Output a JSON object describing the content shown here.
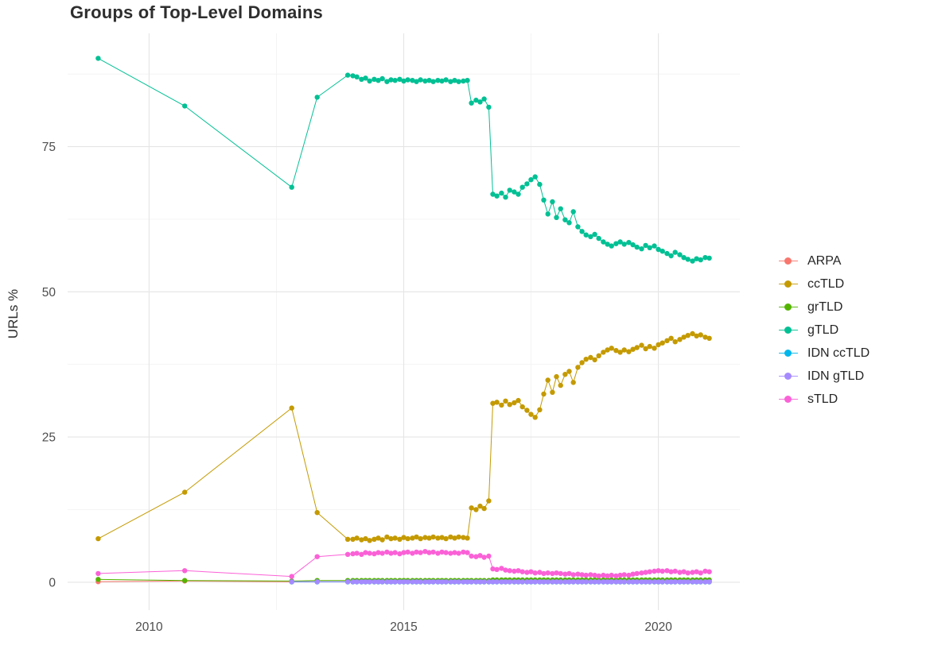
{
  "theme": {
    "background": "#ffffff",
    "grid_major": "#e5e5e5",
    "grid_minor": "#f2f2f2",
    "axis_text_color": "#4d4d4d",
    "title_color": "#2e2e2e",
    "text_color": "#262626"
  },
  "chart_data": {
    "type": "line",
    "title": "Groups of Top-Level Domains",
    "xlabel": "",
    "ylabel": "URLs %",
    "grid": true,
    "legend_position": "right",
    "xlim": [
      2008.4,
      2021.6
    ],
    "ylim": [
      -4.8,
      94.5
    ],
    "x_ticks": [
      2010,
      2015,
      2020
    ],
    "x_minor_ticks": [
      2012.5,
      2017.5
    ],
    "y_ticks": [
      0,
      25,
      50,
      75
    ],
    "y_minor_ticks": [
      12.5,
      37.5,
      62.5,
      87.5
    ],
    "x": [
      2009.0,
      2010.7,
      2012.8,
      2013.3,
      2013.9,
      2014.0,
      2014.08,
      2014.17,
      2014.25,
      2014.33,
      2014.42,
      2014.5,
      2014.58,
      2014.67,
      2014.75,
      2014.83,
      2014.92,
      2015.0,
      2015.08,
      2015.17,
      2015.25,
      2015.33,
      2015.42,
      2015.5,
      2015.58,
      2015.67,
      2015.75,
      2015.83,
      2015.92,
      2016.0,
      2016.08,
      2016.17,
      2016.25,
      2016.33,
      2016.42,
      2016.5,
      2016.58,
      2016.67,
      2016.75,
      2016.83,
      2016.92,
      2017.0,
      2017.08,
      2017.17,
      2017.25,
      2017.33,
      2017.42,
      2017.5,
      2017.58,
      2017.67,
      2017.75,
      2017.83,
      2017.92,
      2018.0,
      2018.08,
      2018.17,
      2018.25,
      2018.33,
      2018.42,
      2018.5,
      2018.58,
      2018.67,
      2018.75,
      2018.83,
      2018.92,
      2019.0,
      2019.08,
      2019.17,
      2019.25,
      2019.33,
      2019.42,
      2019.5,
      2019.58,
      2019.67,
      2019.75,
      2019.83,
      2019.92,
      2020.0,
      2020.08,
      2020.17,
      2020.25,
      2020.33,
      2020.42,
      2020.5,
      2020.58,
      2020.67,
      2020.75,
      2020.83,
      2020.92,
      2021.0
    ],
    "series": [
      {
        "name": "ARPA",
        "color": "#F8766D",
        "values": [
          0.1,
          0.2,
          0.1,
          0.1,
          0.1,
          0.1,
          0.1,
          0.1,
          0.1,
          0.1,
          0.1,
          0.1,
          0.1,
          0.1,
          0.1,
          0.1,
          0.1,
          0.1,
          0.1,
          0.1,
          0.1,
          0.1,
          0.1,
          0.1,
          0.1,
          0.1,
          0.1,
          0.1,
          0.1,
          0.1,
          0.1,
          0.1,
          0.1,
          0.1,
          0.1,
          0.1,
          0.1,
          0.1,
          0.1,
          0.1,
          0.1,
          0.1,
          0.1,
          0.1,
          0.1,
          0.1,
          0.1,
          0.1,
          0.1,
          0.1,
          0.1,
          0.1,
          0.1,
          0.1,
          0.1,
          0.1,
          0.1,
          0.1,
          0.1,
          0.1,
          0.1,
          0.1,
          0.1,
          0.1,
          0.1,
          0.1,
          0.1,
          0.1,
          0.1,
          0.1,
          0.1,
          0.1,
          0.1,
          0.1,
          0.1,
          0.1,
          0.1,
          0.1,
          0.1,
          0.1,
          0.1,
          0.1,
          0.1,
          0.1,
          0.1,
          0.1,
          0.1,
          0.1,
          0.1,
          0.1
        ]
      },
      {
        "name": "ccTLD",
        "color": "#C49A00",
        "values": [
          7.5,
          15.5,
          30.0,
          12.0,
          7.4,
          7.4,
          7.6,
          7.3,
          7.5,
          7.2,
          7.4,
          7.6,
          7.3,
          7.8,
          7.5,
          7.6,
          7.4,
          7.7,
          7.5,
          7.6,
          7.8,
          7.5,
          7.7,
          7.6,
          7.8,
          7.6,
          7.7,
          7.5,
          7.8,
          7.6,
          7.8,
          7.7,
          7.6,
          12.8,
          12.5,
          13.1,
          12.7,
          14.0,
          30.8,
          31.0,
          30.5,
          31.2,
          30.6,
          30.9,
          31.3,
          30.2,
          29.6,
          28.9,
          28.4,
          29.7,
          32.4,
          34.8,
          32.7,
          35.4,
          33.9,
          35.8,
          36.3,
          34.4,
          37.0,
          37.8,
          38.4,
          38.7,
          38.3,
          39.0,
          39.6,
          40.0,
          40.3,
          39.9,
          39.6,
          40.0,
          39.7,
          40.1,
          40.4,
          40.8,
          40.2,
          40.6,
          40.3,
          40.9,
          41.2,
          41.6,
          42.0,
          41.4,
          41.8,
          42.2,
          42.5,
          42.8,
          42.4,
          42.6,
          42.2,
          42.0
        ]
      },
      {
        "name": "grTLD",
        "color": "#53B400",
        "values": [
          0.5,
          0.3,
          0.2,
          0.3,
          0.3,
          0.3,
          0.3,
          0.3,
          0.3,
          0.3,
          0.3,
          0.3,
          0.3,
          0.3,
          0.3,
          0.3,
          0.3,
          0.3,
          0.3,
          0.3,
          0.3,
          0.3,
          0.3,
          0.3,
          0.3,
          0.3,
          0.3,
          0.3,
          0.3,
          0.3,
          0.3,
          0.3,
          0.3,
          0.3,
          0.3,
          0.3,
          0.3,
          0.3,
          0.4,
          0.4,
          0.4,
          0.4,
          0.4,
          0.4,
          0.4,
          0.4,
          0.4,
          0.4,
          0.4,
          0.4,
          0.4,
          0.4,
          0.4,
          0.4,
          0.4,
          0.4,
          0.4,
          0.4,
          0.4,
          0.4,
          0.4,
          0.4,
          0.4,
          0.4,
          0.4,
          0.4,
          0.4,
          0.4,
          0.4,
          0.4,
          0.4,
          0.4,
          0.4,
          0.4,
          0.4,
          0.4,
          0.4,
          0.4,
          0.4,
          0.4,
          0.4,
          0.4,
          0.4,
          0.4,
          0.4,
          0.4,
          0.4,
          0.4,
          0.4,
          0.4
        ]
      },
      {
        "name": "gTLD",
        "color": "#00C094",
        "values": [
          90.2,
          82.0,
          68.0,
          83.5,
          87.3,
          87.2,
          87.0,
          86.6,
          86.8,
          86.3,
          86.6,
          86.4,
          86.7,
          86.2,
          86.5,
          86.4,
          86.6,
          86.3,
          86.5,
          86.4,
          86.2,
          86.5,
          86.3,
          86.4,
          86.2,
          86.4,
          86.3,
          86.5,
          86.2,
          86.4,
          86.2,
          86.3,
          86.4,
          82.5,
          83.0,
          82.7,
          83.2,
          81.8,
          66.8,
          66.5,
          67.0,
          66.3,
          67.5,
          67.2,
          66.8,
          68.0,
          68.6,
          69.3,
          69.8,
          68.5,
          65.8,
          63.4,
          65.5,
          62.8,
          64.3,
          62.4,
          61.9,
          63.8,
          61.2,
          60.4,
          59.8,
          59.5,
          59.9,
          59.2,
          58.6,
          58.2,
          57.9,
          58.3,
          58.6,
          58.2,
          58.5,
          58.1,
          57.7,
          57.4,
          58.0,
          57.6,
          57.9,
          57.3,
          57.0,
          56.6,
          56.2,
          56.8,
          56.4,
          55.9,
          55.6,
          55.3,
          55.7,
          55.5,
          55.9,
          55.8
        ]
      },
      {
        "name": "IDN ccTLD",
        "color": "#00B6EB",
        "values": [
          null,
          null,
          0.05,
          0.05,
          0.05,
          0.05,
          0.05,
          0.05,
          0.05,
          0.05,
          0.05,
          0.05,
          0.05,
          0.05,
          0.05,
          0.05,
          0.05,
          0.05,
          0.05,
          0.05,
          0.05,
          0.05,
          0.05,
          0.05,
          0.05,
          0.05,
          0.05,
          0.05,
          0.05,
          0.05,
          0.05,
          0.05,
          0.05,
          0.05,
          0.05,
          0.05,
          0.05,
          0.05,
          0.05,
          0.05,
          0.05,
          0.05,
          0.05,
          0.05,
          0.05,
          0.05,
          0.05,
          0.05,
          0.05,
          0.05,
          0.05,
          0.05,
          0.05,
          0.05,
          0.05,
          0.05,
          0.05,
          0.05,
          0.05,
          0.05,
          0.05,
          0.05,
          0.05,
          0.05,
          0.05,
          0.05,
          0.05,
          0.05,
          0.05,
          0.05,
          0.05,
          0.05,
          0.05,
          0.05,
          0.05,
          0.05,
          0.05,
          0.05,
          0.05,
          0.05,
          0.05,
          0.05,
          0.05,
          0.05,
          0.05,
          0.05,
          0.05,
          0.05,
          0.05,
          0.05
        ]
      },
      {
        "name": "IDN gTLD",
        "color": "#A58AFF",
        "values": [
          null,
          null,
          0.08,
          0.08,
          0.08,
          0.08,
          0.08,
          0.08,
          0.08,
          0.08,
          0.08,
          0.08,
          0.08,
          0.08,
          0.08,
          0.08,
          0.08,
          0.08,
          0.08,
          0.08,
          0.08,
          0.08,
          0.08,
          0.08,
          0.08,
          0.08,
          0.08,
          0.08,
          0.08,
          0.08,
          0.08,
          0.08,
          0.08,
          0.08,
          0.08,
          0.08,
          0.08,
          0.08,
          0.08,
          0.08,
          0.08,
          0.08,
          0.08,
          0.08,
          0.08,
          0.08,
          0.08,
          0.08,
          0.08,
          0.08,
          0.08,
          0.08,
          0.08,
          0.08,
          0.08,
          0.08,
          0.08,
          0.08,
          0.08,
          0.08,
          0.08,
          0.08,
          0.08,
          0.08,
          0.08,
          0.08,
          0.08,
          0.08,
          0.08,
          0.08,
          0.08,
          0.08,
          0.08,
          0.08,
          0.08,
          0.08,
          0.08,
          0.08,
          0.08,
          0.08,
          0.08,
          0.08,
          0.08,
          0.08,
          0.08,
          0.08,
          0.08,
          0.08,
          0.08,
          0.08
        ]
      },
      {
        "name": "sTLD",
        "color": "#FB61D7",
        "values": [
          1.5,
          2.0,
          1.0,
          4.4,
          4.8,
          4.9,
          5.0,
          4.8,
          5.1,
          5.0,
          4.9,
          5.1,
          5.0,
          5.2,
          5.0,
          5.1,
          4.9,
          5.1,
          5.2,
          5.0,
          5.2,
          5.1,
          5.3,
          5.1,
          5.2,
          5.0,
          5.2,
          5.1,
          5.0,
          5.1,
          5.0,
          5.2,
          5.1,
          4.5,
          4.4,
          4.6,
          4.3,
          4.5,
          2.3,
          2.2,
          2.4,
          2.1,
          2.0,
          1.9,
          2.0,
          1.8,
          1.7,
          1.8,
          1.6,
          1.7,
          1.5,
          1.6,
          1.5,
          1.6,
          1.5,
          1.4,
          1.5,
          1.3,
          1.4,
          1.3,
          1.2,
          1.3,
          1.2,
          1.1,
          1.2,
          1.1,
          1.2,
          1.1,
          1.2,
          1.3,
          1.2,
          1.4,
          1.5,
          1.6,
          1.7,
          1.8,
          1.9,
          2.0,
          1.9,
          2.0,
          1.8,
          1.9,
          1.7,
          1.8,
          1.6,
          1.7,
          1.8,
          1.6,
          1.9,
          1.8
        ]
      }
    ]
  }
}
